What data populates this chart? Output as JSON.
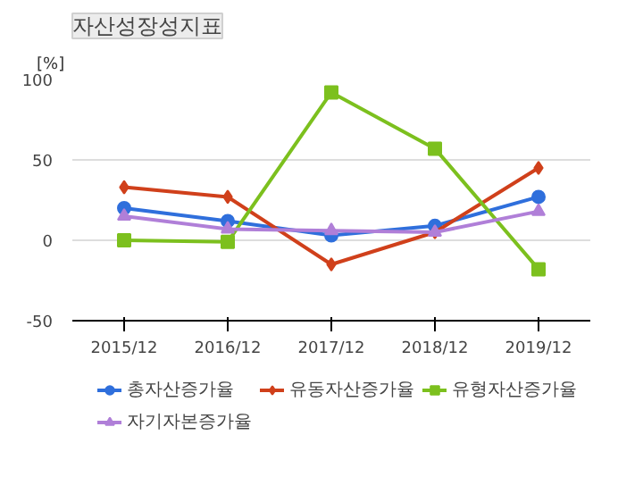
{
  "chart_data": {
    "type": "line",
    "title": "자산성장성지표",
    "ylabel": "[%]",
    "categories": [
      "2015/12",
      "2016/12",
      "2017/12",
      "2018/12",
      "2019/12"
    ],
    "ylim": [
      -50,
      100
    ],
    "yticks": [
      -50,
      0,
      50,
      100
    ],
    "grid": "y",
    "legend": "bottom",
    "line_style": "solid",
    "series": [
      {
        "name": "총자산증가율",
        "color": "#2f6fdc",
        "marker": "circle",
        "values": [
          20,
          12,
          3,
          9,
          27
        ]
      },
      {
        "name": "유동자산증가율",
        "color": "#d0401b",
        "marker": "diamond",
        "values": [
          33,
          27,
          -15,
          5,
          45
        ]
      },
      {
        "name": "유형자산증가율",
        "color": "#7cc01e",
        "marker": "square",
        "values": [
          0,
          -1,
          92,
          57,
          -18
        ]
      },
      {
        "name": "자기자본증가율",
        "color": "#b07fd8",
        "marker": "triangle",
        "values": [
          15,
          7,
          6,
          5,
          18
        ]
      }
    ]
  }
}
